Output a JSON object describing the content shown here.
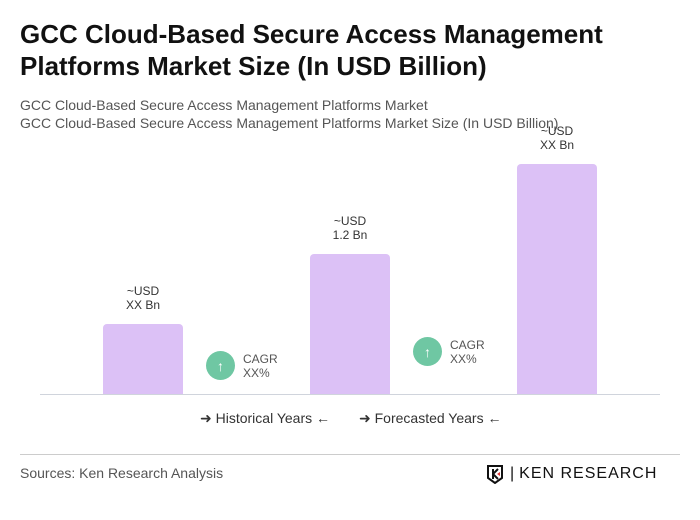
{
  "title": "GCC Cloud-Based Secure Access Management Platforms Market Size (In USD Billion)",
  "subtitle1": "GCC Cloud-Based Secure Access Management Platforms Market",
  "subtitle2": "GCC Cloud-Based Secure Access Management Platforms Market Size (In USD Billion)",
  "chart_data": {
    "type": "bar",
    "values": [
      null,
      1.2,
      null
    ],
    "data_labels": [
      [
        "~USD",
        "XX Bn"
      ],
      [
        "~USD",
        "1.2 Bn"
      ],
      [
        "~USD",
        "XX Bn"
      ]
    ],
    "bar_color": "#dcc1f6",
    "cagr": [
      {
        "label": "CAGR",
        "value": "XX%"
      },
      {
        "label": "CAGR",
        "value": "XX%"
      }
    ],
    "cagr_color": "#6fc7a3",
    "legend": [
      "Historical Years",
      "Forecasted Years"
    ],
    "grid": false
  },
  "sources": "Sources: Ken Research Analysis",
  "logo": "KEN RESEARCH"
}
